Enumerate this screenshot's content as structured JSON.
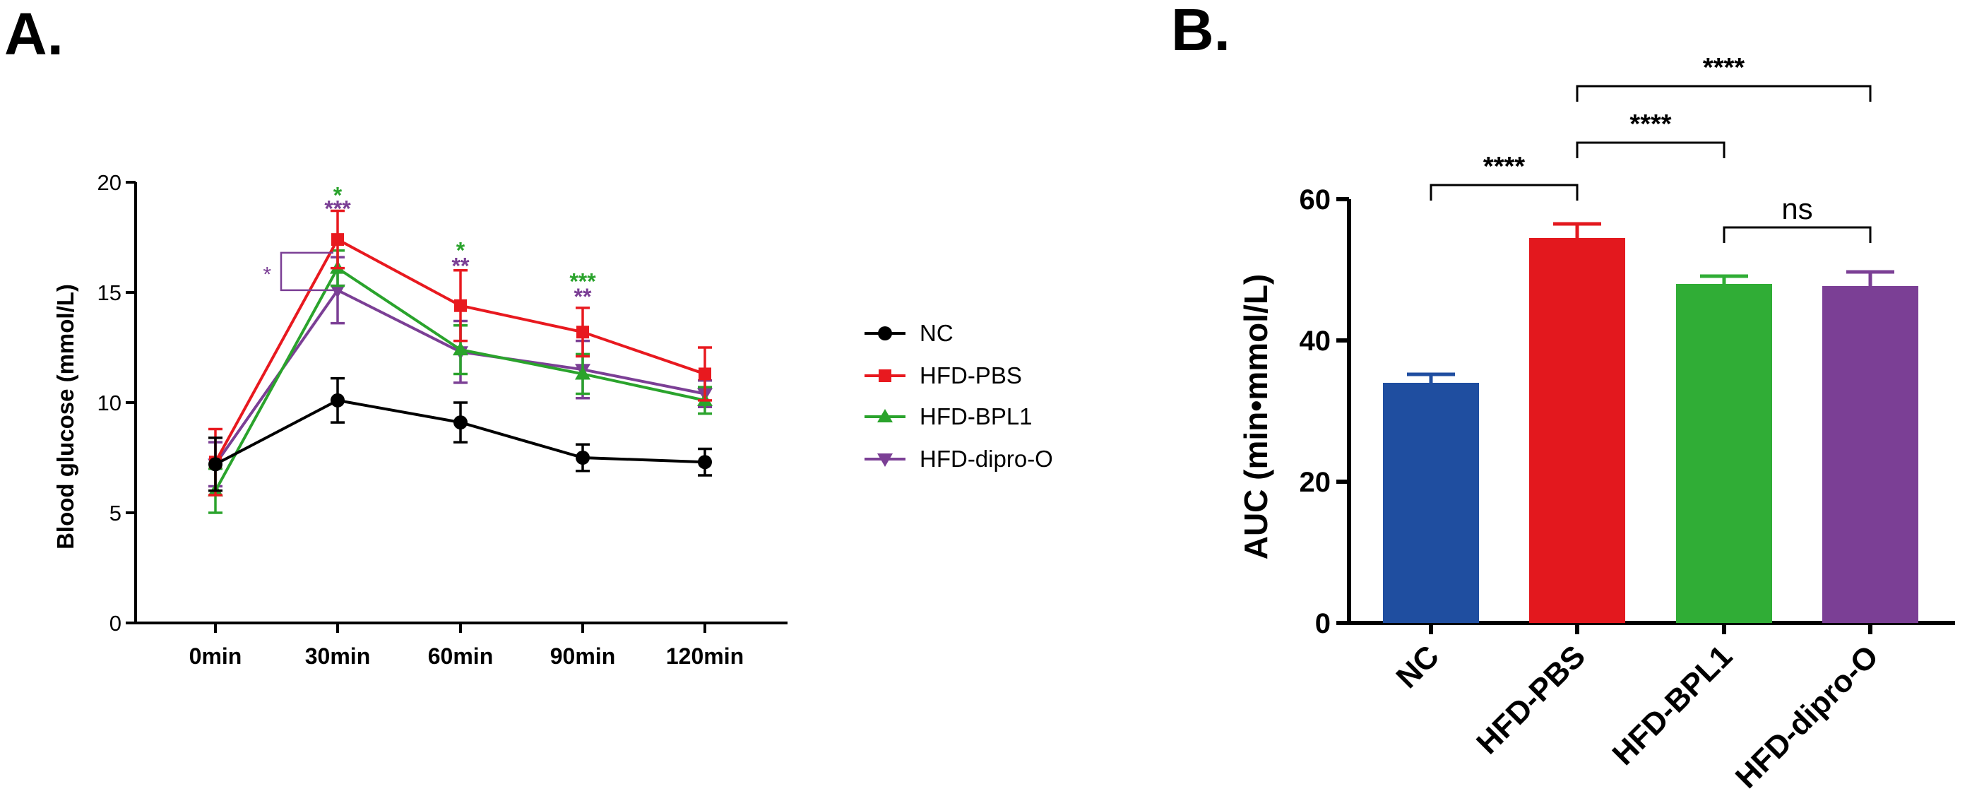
{
  "panels": {
    "a_label": "A.",
    "b_label": "B."
  },
  "colors": {
    "NC": "#000000",
    "HFD-PBS": "#e8191f",
    "HFD-BPL1": "#2aa32c",
    "HFD-dipro-O": "#7b3f95",
    "bar_NC": "#1f4ea0",
    "bar_PBS": "#e3181e",
    "bar_BPL1": "#30ad36",
    "bar_dipro": "#7b3f95"
  },
  "chart_data": [
    {
      "type": "line",
      "title": "",
      "xlabel": "",
      "ylabel": "Blood glucose (mmol/L)",
      "categories": [
        "0min",
        "30min",
        "60min",
        "90min",
        "120min"
      ],
      "ylim": [
        0,
        20
      ],
      "yticks": [
        0,
        5,
        10,
        15,
        20
      ],
      "series": [
        {
          "name": "NC",
          "marker": "circle",
          "color": "#000000",
          "values": [
            7.2,
            10.1,
            9.1,
            7.5,
            7.3
          ],
          "errors": [
            1.2,
            1.0,
            0.9,
            0.6,
            0.6
          ]
        },
        {
          "name": "HFD-PBS",
          "marker": "square",
          "color": "#e8191f",
          "values": [
            7.3,
            17.4,
            14.4,
            13.2,
            11.3
          ],
          "errors": [
            1.5,
            1.3,
            1.6,
            1.1,
            1.2
          ]
        },
        {
          "name": "HFD-BPL1",
          "marker": "triangle-up",
          "color": "#2aa32c",
          "values": [
            6.0,
            16.1,
            12.4,
            11.3,
            10.1
          ],
          "errors": [
            1.0,
            0.8,
            1.1,
            0.9,
            0.6
          ]
        },
        {
          "name": "HFD-dipro-O",
          "marker": "triangle-down",
          "color": "#7b3f95",
          "values": [
            7.2,
            15.1,
            12.3,
            11.5,
            10.4
          ],
          "errors": [
            1.0,
            1.5,
            1.4,
            1.3,
            0.6
          ]
        }
      ],
      "significance": [
        {
          "category": "30min",
          "label": "*",
          "color": "#2aa32c",
          "y": 19.5
        },
        {
          "category": "30min",
          "label": "***",
          "color": "#7b3f95",
          "y": 18.9
        },
        {
          "category": "60min",
          "label": "*",
          "color": "#2aa32c",
          "y": 17.0
        },
        {
          "category": "60min",
          "label": "**",
          "color": "#7b3f95",
          "y": 16.3
        },
        {
          "category": "90min",
          "label": "***",
          "color": "#2aa32c",
          "y": 15.6
        },
        {
          "category": "90min",
          "label": "**",
          "color": "#7b3f95",
          "y": 14.9
        }
      ],
      "bracket_annotation": {
        "label": "*",
        "color": "#7b3f95"
      },
      "legend": {
        "position": "right",
        "entries": [
          "NC",
          "HFD-PBS",
          "HFD-BPL1",
          "HFD-dipro-O"
        ]
      }
    },
    {
      "type": "bar",
      "title": "",
      "xlabel": "",
      "ylabel": "AUC (min•mmol/L)",
      "categories": [
        "NC",
        "HFD-PBS",
        "HFD-BPL1",
        "HFD-dipro-O"
      ],
      "values": [
        34,
        54.5,
        48,
        47.7
      ],
      "errors": [
        1.2,
        2.0,
        1.1,
        2.0
      ],
      "colors": [
        "#1f4ea0",
        "#e3181e",
        "#30ad36",
        "#7b3f95"
      ],
      "ylim": [
        0,
        60
      ],
      "yticks": [
        0,
        20,
        40,
        60
      ],
      "comparisons": [
        {
          "from": "NC",
          "to": "HFD-PBS",
          "label": "****",
          "y": 62
        },
        {
          "from": "HFD-PBS",
          "to": "HFD-BPL1",
          "label": "****",
          "y": 68
        },
        {
          "from": "HFD-PBS",
          "to": "HFD-dipro-O",
          "label": "****",
          "y": 76
        },
        {
          "from": "HFD-BPL1",
          "to": "HFD-dipro-O",
          "label": "ns",
          "y": 56
        }
      ]
    }
  ]
}
